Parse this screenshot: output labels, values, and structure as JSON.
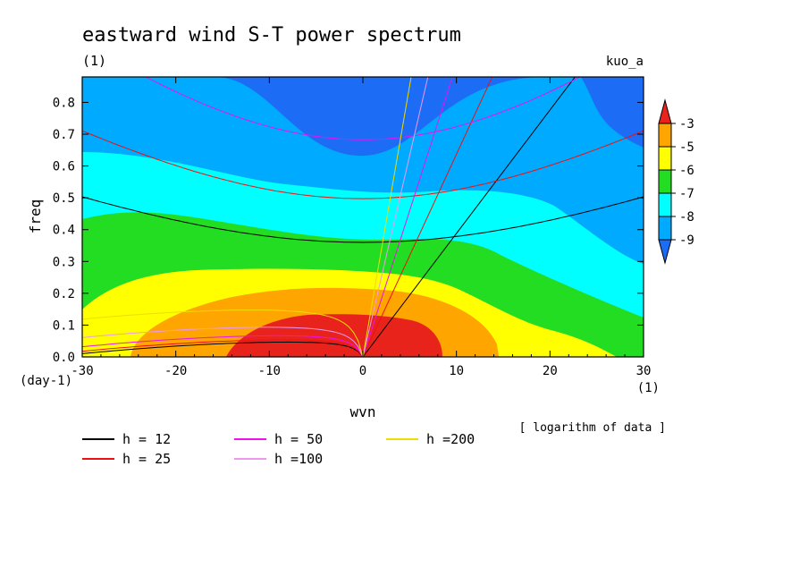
{
  "chart_data": {
    "type": "heatmap",
    "title": "eastward wind S-T power spectrum",
    "subtitle": "(1)",
    "top_right_label": "kuo_a",
    "xlabel": "wvn",
    "ylabel": "freq",
    "x_unit": "(1)",
    "y_unit": "(day-1)",
    "xlim": [
      -30,
      30
    ],
    "ylim": [
      0,
      0.88
    ],
    "x_ticks": [
      -30,
      -20,
      -10,
      0,
      10,
      20,
      30
    ],
    "y_ticks": [
      0.0,
      0.1,
      0.2,
      0.3,
      0.4,
      0.5,
      0.6,
      0.7,
      0.8
    ],
    "x_tick_labels": [
      "-30",
      "-20",
      "-10",
      "0",
      "10",
      "20",
      "30"
    ],
    "y_tick_labels": [
      "0.0",
      "0.1",
      "0.2",
      "0.3",
      "0.4",
      "0.5",
      "0.6",
      "0.7",
      "0.8"
    ],
    "colorbar": {
      "tick_labels": [
        "-3",
        "-5",
        "-6",
        "-7",
        "-8",
        "-9"
      ],
      "levels": [
        -3,
        -5,
        -6,
        -7,
        -8,
        -9
      ],
      "colors": [
        "#e8231b",
        "#ffa500",
        "#ffff00",
        "#22dd22",
        "#00ffff",
        "#00aaff",
        "#1c6cf5"
      ]
    },
    "note": "[ logarithm of data ]",
    "dispersion_curves": [
      {
        "label": "h = 12",
        "color": "#000000"
      },
      {
        "label": "h = 25",
        "color": "#ee1111"
      },
      {
        "label": "h = 50",
        "color": "#ee11ee"
      },
      {
        "label": "h =100",
        "color": "#ee99ee"
      },
      {
        "label": "h =200",
        "color": "#eedd00"
      }
    ],
    "field_bands": [
      {
        "level": -9,
        "color": "#1c6cf5"
      },
      {
        "level": -8,
        "color": "#00aaff"
      },
      {
        "level": -7,
        "color": "#00ffff"
      },
      {
        "level": -6,
        "color": "#22dd22"
      },
      {
        "level": -5,
        "color": "#ffff00"
      },
      {
        "level": -4,
        "color": "#ffa500"
      },
      {
        "level": -3,
        "color": "#e8231b"
      }
    ]
  }
}
